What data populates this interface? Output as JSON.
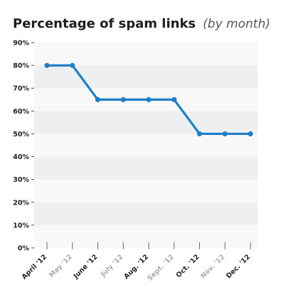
{
  "chart_data": {
    "type": "line",
    "title": "Percentage of spam links",
    "subtitle": "(by month)",
    "categories": [
      "April '12",
      "May '12",
      "June '12",
      "July '12",
      "Aug. '12",
      "Sept. '12",
      "Oct. '12",
      "Nov. '12",
      "Dec. '12"
    ],
    "category_emphasis": [
      true,
      false,
      true,
      false,
      true,
      false,
      true,
      false,
      true
    ],
    "series": [
      {
        "values": [
          80,
          80,
          65,
          65,
          65,
          65,
          50,
          50,
          50
        ]
      }
    ],
    "ylim": [
      0,
      90
    ],
    "yticks": [
      "0%",
      "10%",
      "20%",
      "30%",
      "40%",
      "50%",
      "60%",
      "70%",
      "80%",
      "90%"
    ],
    "grid": "alternating horizontal bands",
    "legend": "none"
  },
  "colors": {
    "line": "#1f7fc4",
    "band_dark": "#eeeff1",
    "band_light": "#f8f8f9",
    "tick_text": "#222222",
    "tick_text_muted": "#a9a9a9",
    "title": "#1e1e1e",
    "subtitle": "#555555"
  }
}
